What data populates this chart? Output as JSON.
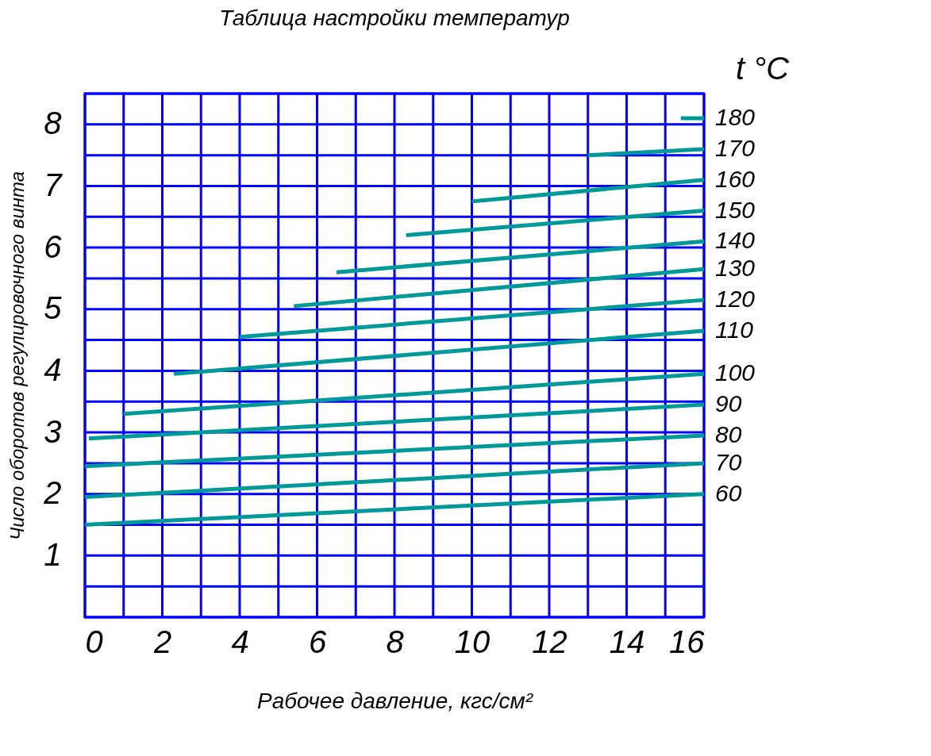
{
  "chart_data": {
    "type": "line",
    "title": "Таблица настройки температур",
    "xlabel": "Рабочее давление, кгс/см²",
    "ylabel": "Число оборотов регулировочного винта",
    "legend_title": "t °C",
    "xlim": [
      0,
      16
    ],
    "ylim": [
      0,
      8.5
    ],
    "xticks": [
      0,
      {
        "value": 1,
        "label": null
      },
      2,
      {
        "value": 3,
        "label": null
      },
      4,
      {
        "value": 5,
        "label": null
      },
      6,
      {
        "value": 7,
        "label": null
      },
      8,
      {
        "value": 9,
        "label": null
      },
      10,
      {
        "value": 11,
        "label": null
      },
      12,
      {
        "value": 13,
        "label": null
      },
      14,
      {
        "value": 15,
        "label": null
      },
      16
    ],
    "yticks": [
      {
        "value": 0,
        "label": null
      },
      {
        "value": 0.5,
        "label": null
      },
      1,
      {
        "value": 1.5,
        "label": null
      },
      2,
      {
        "value": 2.5,
        "label": null
      },
      3,
      {
        "value": 3.5,
        "label": null
      },
      4,
      {
        "value": 4.5,
        "label": null
      },
      5,
      {
        "value": 5.5,
        "label": null
      },
      6,
      {
        "value": 6.5,
        "label": null
      },
      7,
      {
        "value": 7.5,
        "label": null
      },
      8,
      {
        "value": 8.5,
        "label": null
      }
    ],
    "grid": true,
    "line_style": "solid",
    "marker": "none",
    "series": [
      {
        "name": "60",
        "color": "#009999",
        "x": [
          0,
          16
        ],
        "values": [
          1.5,
          2.0
        ]
      },
      {
        "name": "70",
        "color": "#009999",
        "x": [
          0,
          16
        ],
        "values": [
          1.95,
          2.5
        ]
      },
      {
        "name": "80",
        "color": "#009999",
        "x": [
          0,
          16
        ],
        "values": [
          2.45,
          2.95
        ]
      },
      {
        "name": "90",
        "color": "#009999",
        "x": [
          0.1,
          16
        ],
        "values": [
          2.9,
          3.45
        ]
      },
      {
        "name": "100",
        "color": "#009999",
        "x": [
          1,
          16
        ],
        "values": [
          3.3,
          3.95
        ]
      },
      {
        "name": "110",
        "color": "#009999",
        "x": [
          2.3,
          16
        ],
        "values": [
          3.95,
          4.65
        ]
      },
      {
        "name": "120",
        "color": "#009999",
        "x": [
          4,
          16
        ],
        "values": [
          4.55,
          5.15
        ]
      },
      {
        "name": "130",
        "color": "#009999",
        "x": [
          5.4,
          16
        ],
        "values": [
          5.05,
          5.65
        ]
      },
      {
        "name": "140",
        "color": "#009999",
        "x": [
          6.5,
          16
        ],
        "values": [
          5.6,
          6.1
        ]
      },
      {
        "name": "150",
        "color": "#009999",
        "x": [
          8.3,
          16
        ],
        "values": [
          6.2,
          6.6
        ]
      },
      {
        "name": "160",
        "color": "#009999",
        "x": [
          10,
          16
        ],
        "values": [
          6.75,
          7.1
        ]
      },
      {
        "name": "170",
        "color": "#009999",
        "x": [
          13,
          16
        ],
        "values": [
          7.5,
          7.6
        ]
      },
      {
        "name": "180",
        "color": "#009999",
        "x": [
          15.4,
          16
        ],
        "values": [
          8.1,
          8.1
        ]
      }
    ]
  }
}
